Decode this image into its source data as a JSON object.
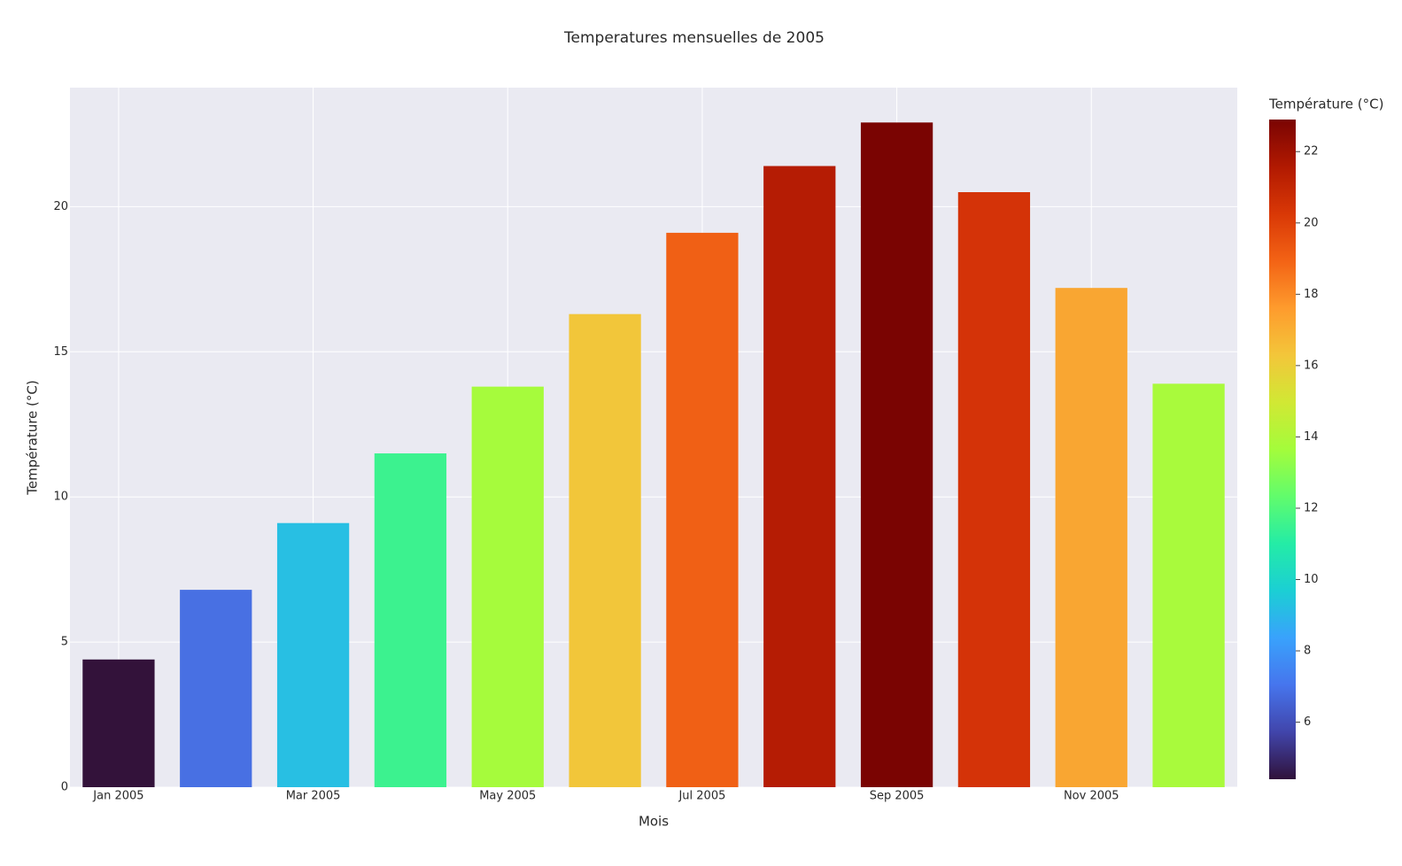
{
  "chart_data": {
    "type": "bar",
    "title": "Temperatures mensuelles de 2005",
    "x_label": "Mois",
    "y_label": "Température (°C)",
    "categories": [
      "Jan 2005",
      null,
      "Mar 2005",
      null,
      "May 2005",
      null,
      "Jul 2005",
      null,
      "Sep 2005",
      null,
      "Nov 2005",
      null
    ],
    "values": [
      4.4,
      6.8,
      9.1,
      11.5,
      13.8,
      16.3,
      19.1,
      21.4,
      22.9,
      20.5,
      17.2,
      13.9
    ],
    "colors": [
      "#33123a",
      "#4870e3",
      "#28bfe3",
      "#3cf28f",
      "#a6fb3c",
      "#f2c63a",
      "#f06015",
      "#b51c04",
      "#7a0402",
      "#d43308",
      "#f9a632",
      "#a9fa3c"
    ],
    "ylim": [
      0,
      24.1
    ],
    "yticks": [
      0,
      5,
      10,
      15,
      20
    ],
    "grid": true,
    "colorbar": {
      "title": "Température (°C)",
      "ticks": [
        6,
        8,
        10,
        12,
        14,
        16,
        18,
        20,
        22
      ],
      "colorscale": [
        "#30123b",
        "#4145ab",
        "#4675ed",
        "#39a2fc",
        "#1bcfd4",
        "#24eca6",
        "#61fc6c",
        "#a4fc3b",
        "#d1e834",
        "#f3c63a",
        "#fe9b2d",
        "#f36315",
        "#d93806",
        "#b11901",
        "#7a0402"
      ]
    }
  }
}
